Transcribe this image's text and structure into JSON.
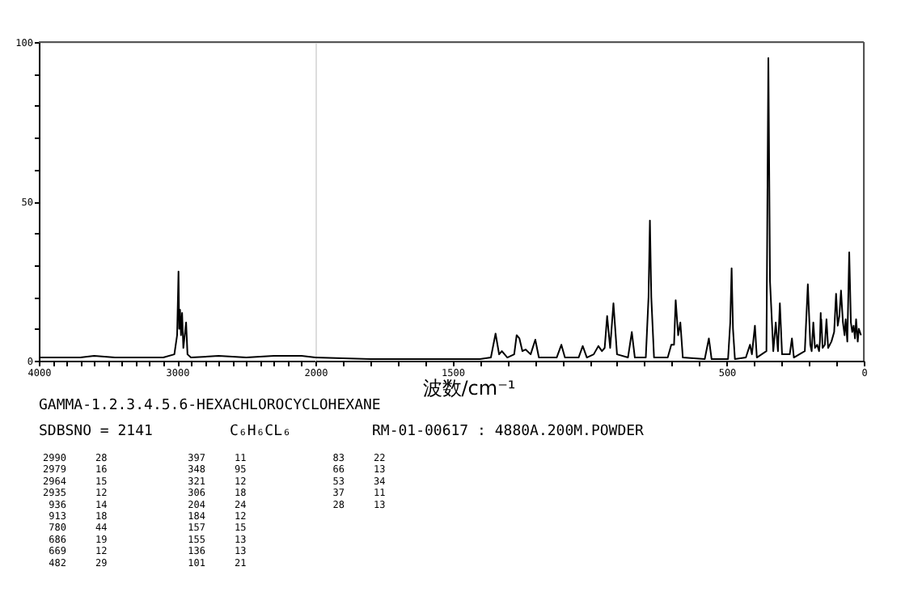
{
  "chart_data": [
    {
      "type": "line",
      "title": "GAMMA-1.2.3.4.5.6-HEXACHLOROCYCLOHEXANE",
      "xlabel": "波数/cm⁻¹",
      "x": [
        4000,
        3700,
        3600,
        3450,
        3100,
        3020,
        3000,
        2990,
        2985,
        2979,
        2972,
        2964,
        2955,
        2935,
        2925,
        2900,
        2700,
        2500,
        2300,
        2100,
        2000
      ],
      "series": [
        {
          "color": "#000000",
          "values": [
            1,
            1,
            1.5,
            1,
            1,
            2,
            8,
            28,
            10,
            16,
            8,
            15,
            4,
            12,
            2,
            1,
            1.5,
            1,
            1.5,
            1.5,
            1
          ]
        }
      ],
      "xlim": [
        4000,
        2000
      ],
      "xticks": [
        4000,
        {
          "value": 3900,
          "label": null
        },
        {
          "value": 3800,
          "label": null
        },
        {
          "value": 3700,
          "label": null
        },
        {
          "value": 3600,
          "label": null
        },
        {
          "value": 3500,
          "label": null
        },
        {
          "value": 3400,
          "label": null
        },
        {
          "value": 3300,
          "label": null
        },
        {
          "value": 3200,
          "label": null
        },
        {
          "value": 3100,
          "label": null
        },
        3000,
        {
          "value": 2900,
          "label": null
        },
        {
          "value": 2800,
          "label": null
        },
        {
          "value": 2700,
          "label": null
        },
        {
          "value": 2600,
          "label": null
        },
        {
          "value": 2500,
          "label": null
        },
        {
          "value": 2400,
          "label": null
        },
        {
          "value": 2300,
          "label": null
        },
        {
          "value": 2200,
          "label": null
        },
        {
          "value": 2100,
          "label": null
        }
      ],
      "ylim": [
        0,
        100
      ],
      "yticks": [
        0,
        {
          "value": 10,
          "label": null
        },
        {
          "value": 20,
          "label": null
        },
        {
          "value": 30,
          "label": null
        },
        {
          "value": 40,
          "label": null
        },
        50,
        {
          "value": 60,
          "label": null
        },
        {
          "value": 70,
          "label": null
        },
        {
          "value": 80,
          "label": null
        },
        {
          "value": 90,
          "label": null
        },
        100
      ],
      "grid": false,
      "marker": "none",
      "line_style": "solid",
      "annotations": [
        "SDBSNO = 2141",
        "C₆H₆CL₆",
        "RM-01-00617 : 4880A.200M.POWDER",
        "2990",
        "28",
        "2979",
        "16",
        "2964",
        "15",
        "2935",
        "12",
        "936",
        "14",
        "913",
        "18",
        "780",
        "44",
        "686",
        "19",
        "669",
        "12",
        "482",
        "29",
        "397",
        "11",
        "348",
        "95",
        "321",
        "12",
        "306",
        "18",
        "204",
        "24",
        "184",
        "12",
        "157",
        "15",
        "155",
        "13",
        "136",
        "13",
        "101",
        "21",
        "83",
        "22",
        "66",
        "13",
        "53",
        "34",
        "37",
        "11",
        "28",
        "13"
      ]
    },
    {
      "type": "line",
      "x": [
        2000,
        1800,
        1600,
        1400,
        1360,
        1343,
        1330,
        1320,
        1300,
        1275,
        1266,
        1256,
        1245,
        1233,
        1215,
        1198,
        1185,
        1120,
        1103,
        1090,
        1040,
        1025,
        1010,
        985,
        968,
        955,
        945,
        936,
        925,
        913,
        900,
        860,
        846,
        835,
        795,
        785,
        780,
        775,
        765,
        715,
        702,
        692,
        686,
        677,
        669,
        660,
        580,
        565,
        555,
        495,
        487,
        482,
        477,
        470,
        430,
        415,
        408,
        397,
        390,
        355,
        348,
        342,
        330,
        321,
        313,
        306,
        298,
        270,
        262,
        255,
        215,
        204,
        195,
        190,
        184,
        178,
        170,
        163,
        160,
        157,
        156,
        155,
        150,
        142,
        136,
        130,
        118,
        108,
        101,
        95,
        89,
        83,
        76,
        70,
        66,
        60,
        53,
        47,
        42,
        37,
        32,
        28,
        22,
        18,
        10
      ],
      "series": [
        {
          "color": "#000000",
          "values": [
            1,
            0.5,
            0.5,
            0.5,
            1,
            8.5,
            2,
            3,
            1,
            2,
            8,
            7,
            3,
            3.5,
            2,
            6.6,
            1,
            1,
            5,
            1,
            1,
            4.6,
            1,
            2,
            4.6,
            3,
            4,
            14,
            4,
            18,
            2,
            1,
            9,
            1,
            1,
            20,
            44,
            20,
            1,
            1,
            5,
            5,
            19,
            8,
            12,
            1,
            0.5,
            7,
            0.5,
            0.5,
            12,
            29,
            10,
            0.5,
            1,
            5,
            2,
            11,
            1,
            3,
            95,
            25,
            3,
            12,
            3,
            18,
            2,
            2,
            7,
            1,
            3,
            24,
            5,
            3,
            12,
            4,
            5,
            3,
            6,
            15,
            9,
            13,
            4,
            5,
            13,
            4,
            6,
            9,
            21,
            11,
            14,
            22,
            12,
            8,
            13,
            6,
            34,
            12,
            9,
            11,
            7,
            13,
            6,
            10,
            8
          ]
        }
      ],
      "xlim": [
        2000,
        0
      ],
      "xticks": [
        2000,
        {
          "value": 1900,
          "label": null
        },
        {
          "value": 1800,
          "label": null
        },
        {
          "value": 1700,
          "label": null
        },
        {
          "value": 1600,
          "label": null
        },
        1500,
        {
          "value": 1400,
          "label": null
        },
        {
          "value": 1300,
          "label": null
        },
        {
          "value": 1200,
          "label": null
        },
        {
          "value": 1100,
          "label": null
        },
        {
          "value": 1000,
          "label": null
        },
        {
          "value": 900,
          "label": null
        },
        {
          "value": 800,
          "label": null
        },
        {
          "value": 700,
          "label": null
        },
        {
          "value": 600,
          "label": null
        },
        500,
        {
          "value": 400,
          "label": null
        },
        {
          "value": 300,
          "label": null
        },
        {
          "value": 200,
          "label": null
        },
        {
          "value": 100,
          "label": null
        },
        0
      ],
      "ylim": [
        0,
        100
      ],
      "tick_labels": "x",
      "grid": false,
      "marker": "none",
      "line_style": "solid"
    }
  ]
}
